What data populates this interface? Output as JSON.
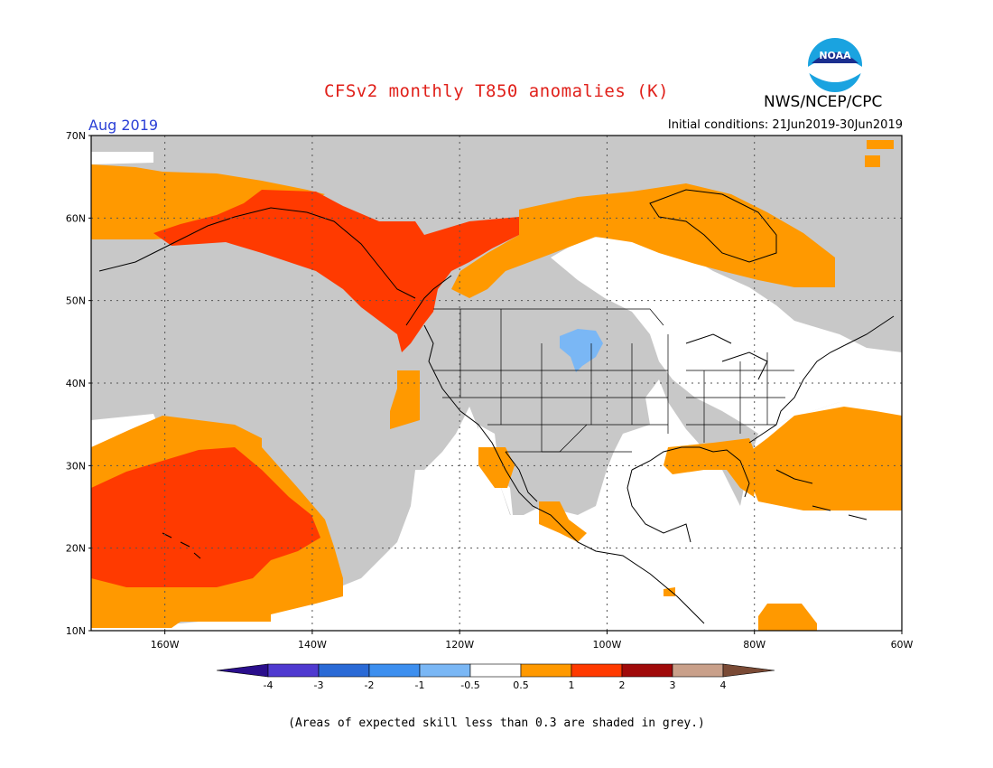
{
  "title": "CFSv2 monthly T850 anomalies (K)",
  "agency": "NWS/NCEP/CPC",
  "valid_month": "Aug 2019",
  "initial_conditions": "Initial conditions: 21Jun2019-30Jun2019",
  "footnote": "(Areas of expected skill less than 0.3 are shaded in grey.)",
  "logo_text": "NOAA",
  "map": {
    "lat_labels": [
      "70N",
      "60N",
      "50N",
      "40N",
      "30N",
      "20N",
      "10N"
    ],
    "lon_labels": [
      "160W",
      "140W",
      "120W",
      "100W",
      "80W",
      "60W"
    ]
  },
  "colorbar": {
    "labels": [
      "-4",
      "-3",
      "-2",
      "-1",
      "-0.5",
      "0.5",
      "1",
      "2",
      "3",
      "4"
    ],
    "colors": [
      "#2a0e8c",
      "#4f3ad0",
      "#2a6ad6",
      "#3d8fef",
      "#7ab7f5",
      "#ffffff",
      "#ff9900",
      "#ff3a00",
      "#a00a0a",
      "#c9a08a",
      "#7a4a35"
    ]
  },
  "colors": {
    "grey_skill": "#c8c8c8",
    "anomaly_0p5_1": "#ff9900",
    "anomaly_1_2": "#ff3a00",
    "anomaly_neg_0p5_1": "#7ab7f5",
    "title": "#e0201a",
    "month": "#2a3fd6"
  }
}
